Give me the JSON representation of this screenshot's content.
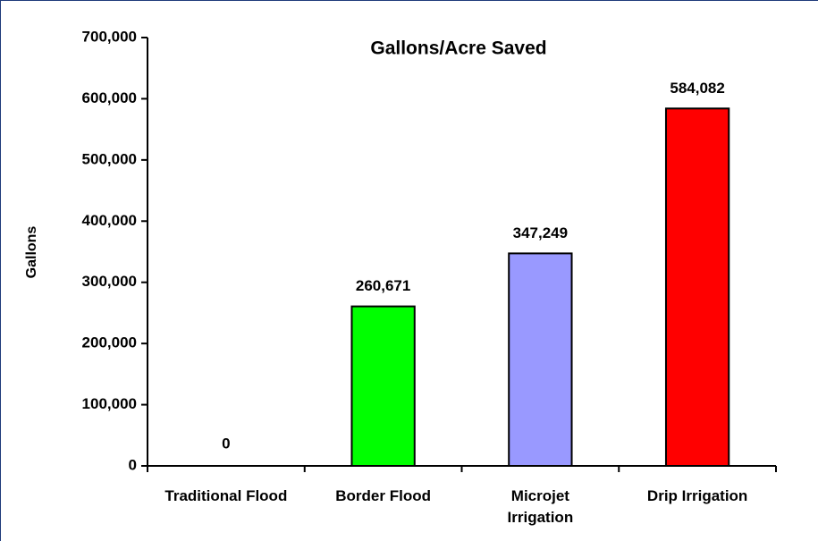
{
  "chart_data": {
    "type": "bar",
    "title": "Gallons/Acre Saved",
    "y_label": "Gallons",
    "categories": [
      "Traditional Flood",
      "Border Flood",
      "Microjet Irrigation",
      "Drip Irrigation"
    ],
    "values": [
      0,
      260671,
      347249,
      584082
    ],
    "value_labels": [
      "0",
      "260,671",
      "347,249",
      "584,082"
    ],
    "colors": [
      "#0000ff",
      "#00ff00",
      "#9999ff",
      "#ff0000"
    ],
    "ylim": [
      0,
      700000
    ],
    "yticks": [
      0,
      {
        "value": 100000,
        "label": "100,000"
      },
      {
        "value": 200000,
        "label": "200,000"
      },
      {
        "value": 300000,
        "label": "300,000"
      },
      {
        "value": 400000,
        "label": "400,000"
      },
      {
        "value": 500000,
        "label": "500,000"
      },
      {
        "value": 600000,
        "label": "600,000"
      },
      {
        "value": 700000,
        "label": "700,000"
      }
    ]
  }
}
